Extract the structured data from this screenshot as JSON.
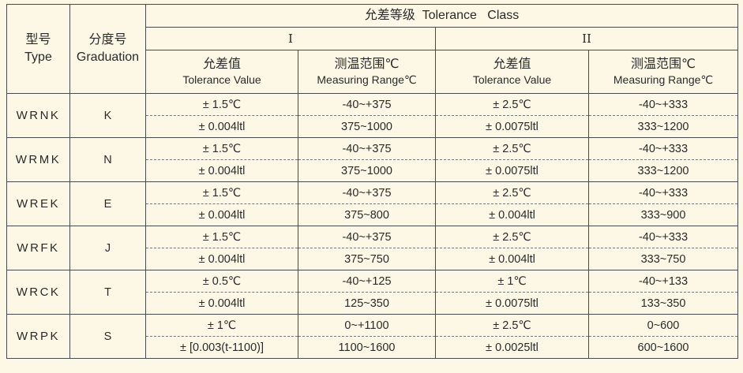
{
  "header": {
    "type_zh": "型号",
    "type_en": "Type",
    "grad_zh": "分度号",
    "grad_en": "Graduation",
    "tolerance_class": "允差等级  Tolerance   Class",
    "class_1": "I",
    "class_2": "II",
    "tol_value_zh": "允差值",
    "tol_value_en": "Tolerance Value",
    "meas_range_zh": "测温范围℃",
    "meas_range_en": "Measuring Range℃"
  },
  "rows": [
    {
      "type": "WRNK",
      "graduation": "K",
      "r1": {
        "c1_tol": "± 1.5℃",
        "c1_range": "-40~+375",
        "c2_tol": "± 2.5℃",
        "c2_range": "-40~+333"
      },
      "r2": {
        "c1_tol": "± 0.004ltl",
        "c1_range": "375~1000",
        "c2_tol": "± 0.0075ltl",
        "c2_range": "333~1200"
      }
    },
    {
      "type": "WRMK",
      "graduation": "N",
      "r1": {
        "c1_tol": "± 1.5℃",
        "c1_range": "-40~+375",
        "c2_tol": "± 2.5℃",
        "c2_range": "-40~+333"
      },
      "r2": {
        "c1_tol": "± 0.004ltl",
        "c1_range": "375~1000",
        "c2_tol": "± 0.0075ltl",
        "c2_range": "333~1200"
      }
    },
    {
      "type": "WREK",
      "graduation": "E",
      "r1": {
        "c1_tol": "± 1.5℃",
        "c1_range": "-40~+375",
        "c2_tol": "± 2.5℃",
        "c2_range": "-40~+333"
      },
      "r2": {
        "c1_tol": "± 0.004ltl",
        "c1_range": "375~800",
        "c2_tol": "± 0.004ltl",
        "c2_range": "333~900"
      }
    },
    {
      "type": "WRFK",
      "graduation": "J",
      "r1": {
        "c1_tol": "± 1.5℃",
        "c1_range": "-40~+375",
        "c2_tol": "± 2.5℃",
        "c2_range": "-40~+333"
      },
      "r2": {
        "c1_tol": "± 0.004ltl",
        "c1_range": "375~750",
        "c2_tol": "± 0.004ltl",
        "c2_range": "333~750"
      }
    },
    {
      "type": "WRCK",
      "graduation": "T",
      "r1": {
        "c1_tol": "± 0.5℃",
        "c1_range": "-40~+125",
        "c2_tol": "± 1℃",
        "c2_range": "-40~+133"
      },
      "r2": {
        "c1_tol": "± 0.004ltl",
        "c1_range": "125~350",
        "c2_tol": "± 0.0075ltl",
        "c2_range": "133~350"
      }
    },
    {
      "type": "WRPK",
      "graduation": "S",
      "r1": {
        "c1_tol": "± 1℃",
        "c1_range": "0~+1100",
        "c2_tol": "± 2.5℃",
        "c2_range": "0~600"
      },
      "r2": {
        "c1_tol": "± [0.003(t-1100)]",
        "c1_range": "1100~1600",
        "c2_tol": "± 0.0025ltl",
        "c2_range": "600~1600"
      }
    }
  ]
}
